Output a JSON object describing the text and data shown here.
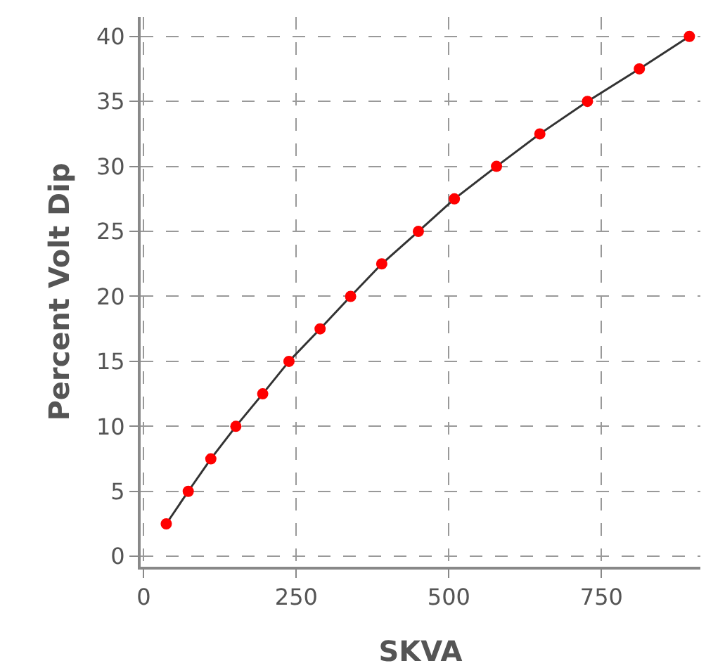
{
  "chart_data": {
    "type": "line",
    "xlabel": "SKVA",
    "ylabel": "Percent Volt Dip",
    "x": [
      37,
      73,
      110,
      151,
      195,
      238,
      289,
      339,
      390,
      450,
      509,
      578,
      649,
      727,
      812,
      894
    ],
    "series": [
      {
        "color": "#333333",
        "colors": [
          "#ff0000",
          "#ff0000",
          "#ff0000",
          "#ff0000",
          "#ff0000",
          "#ff0000",
          "#ff0000",
          "#ff0000",
          "#ff0000",
          "#ff0000",
          "#ff0000",
          "#ff0000",
          "#ff0000",
          "#ff0000",
          "#ff0000",
          "#ff0000"
        ],
        "values": [
          2.5,
          5,
          7.5,
          10,
          12.5,
          15,
          17.5,
          20,
          22.5,
          25,
          27.5,
          30,
          32.5,
          35,
          37.5,
          40
        ]
      }
    ],
    "xlim": [
      -5,
      912
    ],
    "xticks": [
      0,
      250,
      500,
      750
    ],
    "ylim": [
      -0.8,
      41.5
    ],
    "yticks": [
      0,
      5,
      10,
      15,
      20,
      25,
      30,
      35,
      40
    ],
    "grid": true,
    "marker": "circle",
    "line_style": "solid",
    "legend": false
  }
}
